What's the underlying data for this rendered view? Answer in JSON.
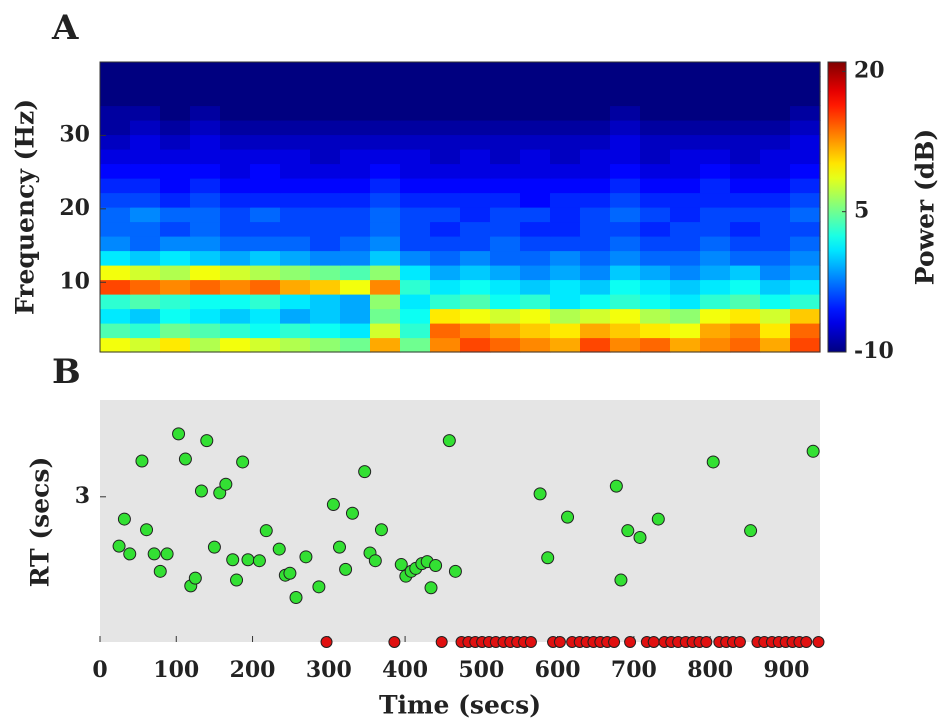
{
  "chart_data": [
    {
      "type": "heatmap",
      "panel": "A",
      "ylabel": "Frequency (Hz)",
      "colorbar_label": "Power (dB)",
      "xlim": [
        0,
        944
      ],
      "ylim": [
        0.5,
        40
      ],
      "yticks": [
        10,
        20,
        30
      ],
      "clim": [
        -10,
        21
      ],
      "cticks": [
        -10,
        5,
        20
      ],
      "colormap": "jet",
      "z": [
        [
          9,
          8,
          10,
          7,
          9,
          8,
          7,
          6,
          5,
          12,
          5,
          13,
          15,
          14,
          13,
          12,
          15,
          13,
          14,
          12,
          13,
          14,
          12,
          15
        ],
        [
          4,
          3,
          5,
          4,
          3,
          2,
          3,
          2,
          1,
          8,
          3,
          14,
          13,
          12,
          11,
          10,
          12,
          11,
          10,
          9,
          12,
          13,
          10,
          14
        ],
        [
          1,
          0,
          2,
          1,
          0,
          1,
          -1,
          0,
          -1,
          5,
          2,
          10,
          9,
          8,
          9,
          7,
          8,
          9,
          7,
          6,
          9,
          10,
          8,
          11
        ],
        [
          3,
          4,
          3,
          2,
          2,
          3,
          1,
          0,
          -1,
          6,
          1,
          3,
          4,
          2,
          3,
          1,
          2,
          3,
          2,
          1,
          3,
          4,
          2,
          3
        ],
        [
          15,
          14,
          13,
          14,
          13,
          14,
          12,
          11,
          9,
          13,
          3,
          1,
          2,
          1,
          0,
          1,
          0,
          2,
          1,
          0,
          1,
          2,
          0,
          1
        ],
        [
          9,
          8,
          7,
          9,
          8,
          7,
          6,
          5,
          4,
          6,
          1,
          -1,
          0,
          -1,
          -2,
          -1,
          -2,
          0,
          -1,
          -2,
          -1,
          0,
          -2,
          -1
        ],
        [
          1,
          0,
          1,
          0,
          -1,
          0,
          -1,
          -2,
          -2,
          0,
          -2,
          -3,
          -2,
          -3,
          -3,
          -2,
          -3,
          -2,
          -3,
          -3,
          -2,
          -3,
          -3,
          -2
        ],
        [
          -2,
          -3,
          -2,
          -2,
          -3,
          -3,
          -3,
          -4,
          -3,
          -2,
          -4,
          -4,
          -4,
          -3,
          -4,
          -4,
          -4,
          -3,
          -4,
          -4,
          -3,
          -4,
          -4,
          -3
        ],
        [
          -3,
          -3,
          -4,
          -3,
          -4,
          -4,
          -4,
          -4,
          -4,
          -3,
          -4,
          -5,
          -4,
          -4,
          -5,
          -5,
          -4,
          -4,
          -5,
          -4,
          -4,
          -5,
          -4,
          -4
        ],
        [
          -3,
          -2,
          -3,
          -3,
          -4,
          -3,
          -4,
          -4,
          -4,
          -3,
          -4,
          -4,
          -5,
          -4,
          -4,
          -5,
          -4,
          -3,
          -4,
          -5,
          -4,
          -4,
          -4,
          -3
        ],
        [
          -4,
          -4,
          -5,
          -4,
          -5,
          -5,
          -5,
          -5,
          -5,
          -4,
          -5,
          -5,
          -5,
          -5,
          -6,
          -5,
          -5,
          -4,
          -5,
          -5,
          -5,
          -5,
          -5,
          -4
        ],
        [
          -5,
          -5,
          -6,
          -5,
          -6,
          -6,
          -6,
          -6,
          -6,
          -5,
          -6,
          -6,
          -6,
          -6,
          -6,
          -6,
          -6,
          -5,
          -6,
          -6,
          -5,
          -6,
          -6,
          -5
        ],
        [
          -6,
          -6,
          -6,
          -6,
          -7,
          -6,
          -7,
          -7,
          -7,
          -6,
          -7,
          -7,
          -7,
          -7,
          -7,
          -7,
          -7,
          -6,
          -7,
          -7,
          -6,
          -7,
          -7,
          -6
        ],
        [
          -7,
          -7,
          -7,
          -7,
          -7,
          -7,
          -7,
          -8,
          -7,
          -7,
          -7,
          -8,
          -7,
          -8,
          -7,
          -8,
          -7,
          -7,
          -8,
          -7,
          -7,
          -8,
          -7,
          -7
        ],
        [
          -8,
          -7,
          -8,
          -7,
          -8,
          -8,
          -8,
          -8,
          -8,
          -8,
          -8,
          -8,
          -8,
          -8,
          -8,
          -8,
          -8,
          -7,
          -8,
          -8,
          -8,
          -8,
          -8,
          -7
        ],
        [
          -9,
          -8,
          -9,
          -8,
          -9,
          -9,
          -9,
          -9,
          -9,
          -9,
          -9,
          -9,
          -9,
          -9,
          -9,
          -9,
          -9,
          -8,
          -9,
          -9,
          -9,
          -9,
          -9,
          -8
        ],
        [
          -9,
          -9,
          -10,
          -9,
          -10,
          -10,
          -10,
          -10,
          -10,
          -10,
          -10,
          -10,
          -10,
          -10,
          -10,
          -10,
          -10,
          -9,
          -10,
          -10,
          -10,
          -10,
          -10,
          -9
        ],
        [
          -10,
          -10,
          -10,
          -10,
          -10,
          -10,
          -10,
          -10,
          -10,
          -10,
          -10,
          -10,
          -10,
          -10,
          -10,
          -10,
          -10,
          -10,
          -10,
          -10,
          -10,
          -10,
          -10,
          -10
        ],
        [
          -10,
          -10,
          -10,
          -10,
          -10,
          -10,
          -10,
          -10,
          -10,
          -10,
          -10,
          -10,
          -10,
          -10,
          -10,
          -10,
          -10,
          -10,
          -10,
          -10,
          -10,
          -10,
          -10,
          -10
        ],
        [
          -10,
          -10,
          -10,
          -10,
          -10,
          -10,
          -10,
          -10,
          -10,
          -10,
          -10,
          -10,
          -10,
          -10,
          -10,
          -10,
          -10,
          -10,
          -10,
          -10,
          -10,
          -10,
          -10,
          -10
        ]
      ]
    },
    {
      "type": "scatter",
      "panel": "B",
      "ylabel": "RT (secs)",
      "xlabel": "Time (secs)",
      "xlim": [
        0,
        944
      ],
      "ylim": [
        1.5,
        4
      ],
      "yticks": [
        3
      ],
      "xticks": [
        0,
        100,
        200,
        300,
        400,
        500,
        600,
        700,
        800,
        900
      ],
      "background": "#e5e5e5",
      "series": [
        {
          "color": "#33e033",
          "x": [
            25,
            32,
            39,
            55,
            61,
            71,
            79,
            88,
            103,
            112,
            119,
            125,
            133,
            140,
            150,
            157,
            165,
            174,
            179,
            187,
            194,
            209,
            218,
            235,
            243,
            249,
            257,
            270,
            287,
            306,
            314,
            322,
            331,
            347,
            354,
            361,
            369,
            395,
            401,
            408,
            414,
            422,
            429,
            434,
            440,
            458,
            466,
            577,
            587,
            613,
            677,
            683,
            692,
            708,
            732,
            804,
            853,
            935
          ],
          "values": [
            2.49,
            2.77,
            2.41,
            3.37,
            2.66,
            2.41,
            2.23,
            2.41,
            3.65,
            3.39,
            2.08,
            2.16,
            3.06,
            3.58,
            2.48,
            3.04,
            3.13,
            2.35,
            2.14,
            3.36,
            2.35,
            2.34,
            2.65,
            2.46,
            2.19,
            2.21,
            1.96,
            2.38,
            2.07,
            2.92,
            2.48,
            2.25,
            2.83,
            3.26,
            2.42,
            2.34,
            2.66,
            2.3,
            2.18,
            2.23,
            2.26,
            2.31,
            2.33,
            2.06,
            2.29,
            3.58,
            2.23,
            3.03,
            2.37,
            2.79,
            3.11,
            2.14,
            2.65,
            2.58,
            2.77,
            3.36,
            2.65,
            3.47
          ]
        },
        {
          "color": "#e01010",
          "x": [
            297,
            386,
            448,
            474,
            483,
            492,
            501,
            510,
            519,
            529,
            538,
            547,
            556,
            565,
            594,
            603,
            619,
            629,
            638,
            647,
            656,
            665,
            674,
            695,
            717,
            726,
            740,
            749,
            758,
            768,
            777,
            786,
            795,
            812,
            821,
            830,
            839,
            862,
            871,
            881,
            890,
            899,
            908,
            917,
            926,
            942
          ]
        }
      ]
    }
  ]
}
